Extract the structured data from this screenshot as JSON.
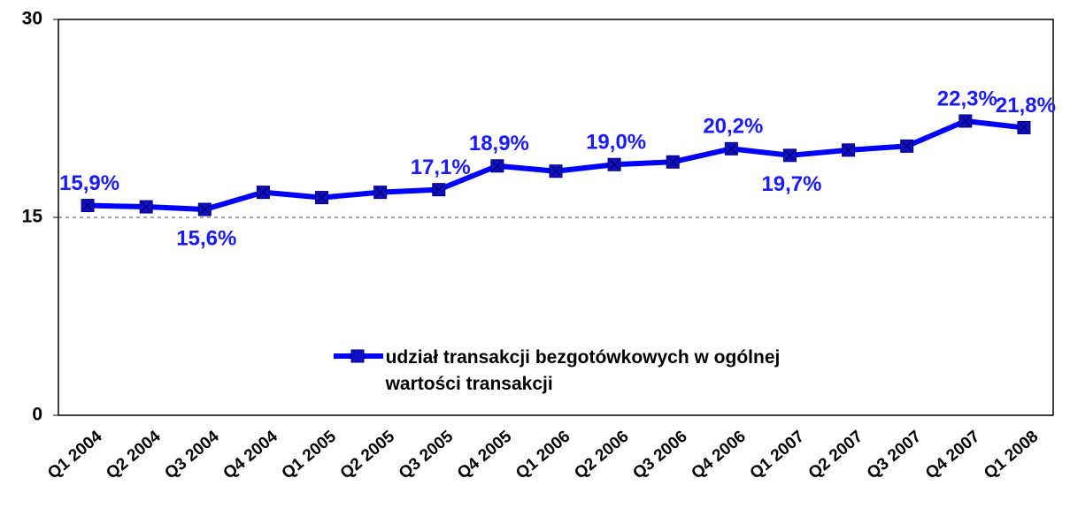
{
  "chart_data": {
    "type": "line",
    "categories": [
      "Q1 2004",
      "Q2 2004",
      "Q3 2004",
      "Q4 2004",
      "Q1 2005",
      "Q2 2005",
      "Q3 2005",
      "Q4 2005",
      "Q1 2006",
      "Q2 2006",
      "Q3 2006",
      "Q4 2006",
      "Q1 2007",
      "Q2 2007",
      "Q3 2007",
      "Q4 2007",
      "Q1 2008"
    ],
    "series": [
      {
        "name": "udział  transakcji bezgotówkowych w ogólnej wartości transakcji",
        "color": "#0000ff",
        "values": [
          15.9,
          15.8,
          15.6,
          16.9,
          16.5,
          16.9,
          17.1,
          18.9,
          18.5,
          19.0,
          19.2,
          20.2,
          19.7,
          20.1,
          20.4,
          22.3,
          21.8
        ],
        "value_labels": [
          "15,9%",
          null,
          "15,6%",
          null,
          null,
          null,
          "17,1%",
          "18,9%",
          null,
          "19,0%",
          null,
          "20,2%",
          "19,7%",
          null,
          null,
          "22,3%",
          "21,8%"
        ]
      }
    ],
    "ylim": [
      0,
      30
    ],
    "yticks": [
      0,
      15,
      30
    ],
    "grid": true,
    "legend": "center"
  }
}
